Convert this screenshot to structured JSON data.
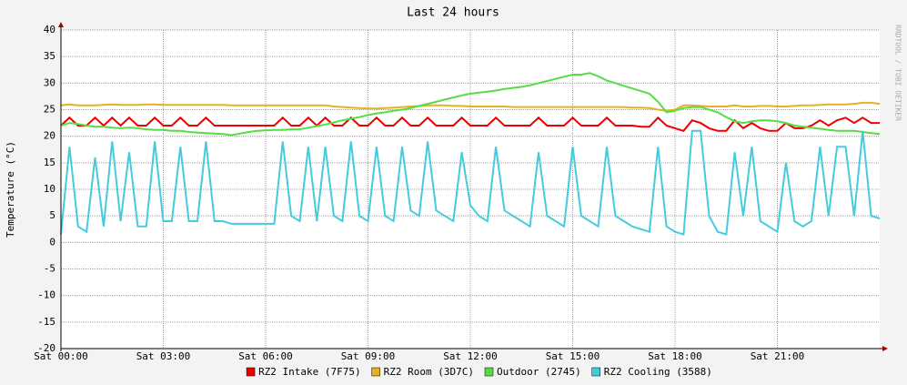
{
  "chart_data": {
    "type": "line",
    "title": "Last 24 hours",
    "ylabel": "Temperature (°C)",
    "side_note": "RRDTOOL / TOBI OETIKER",
    "x": [
      0,
      0.25,
      0.5,
      0.75,
      1,
      1.25,
      1.5,
      1.75,
      2,
      2.25,
      2.5,
      2.75,
      3,
      3.25,
      3.5,
      3.75,
      4,
      4.25,
      4.5,
      4.75,
      5,
      5.25,
      5.5,
      5.75,
      6,
      6.25,
      6.5,
      6.75,
      7,
      7.25,
      7.5,
      7.75,
      8,
      8.25,
      8.5,
      8.75,
      9,
      9.25,
      9.5,
      9.75,
      10,
      10.25,
      10.5,
      10.75,
      11,
      11.25,
      11.5,
      11.75,
      12,
      12.25,
      12.5,
      12.75,
      13,
      13.25,
      13.5,
      13.75,
      14,
      14.25,
      14.5,
      14.75,
      15,
      15.25,
      15.5,
      15.75,
      16,
      16.25,
      16.5,
      16.75,
      17,
      17.25,
      17.5,
      17.75,
      18,
      18.25,
      18.5,
      18.75,
      19,
      19.25,
      19.5,
      19.75,
      20,
      20.25,
      20.5,
      20.75,
      21,
      21.25,
      21.5,
      21.75,
      22,
      22.25,
      22.5,
      22.75,
      23,
      23.25,
      23.5,
      23.75,
      24
    ],
    "xlim": [
      0,
      24
    ],
    "xticks": [
      {
        "value": 0,
        "label": "Sat 00:00"
      },
      {
        "value": 3,
        "label": "Sat 03:00"
      },
      {
        "value": 6,
        "label": "Sat 06:00"
      },
      {
        "value": 9,
        "label": "Sat 09:00"
      },
      {
        "value": 12,
        "label": "Sat 12:00"
      },
      {
        "value": 15,
        "label": "Sat 15:00"
      },
      {
        "value": 18,
        "label": "Sat 18:00"
      },
      {
        "value": 21,
        "label": "Sat 21:00"
      }
    ],
    "ylim": [
      -20,
      40
    ],
    "yticks": [
      -20,
      -15,
      -10,
      -5,
      0,
      5,
      10,
      15,
      20,
      25,
      30,
      35,
      40
    ],
    "grid": true,
    "series": [
      {
        "name": "RZ2 Intake (7F75)",
        "color": "#ee0000",
        "values": [
          22,
          23.5,
          22,
          22,
          23.5,
          22,
          23.5,
          22,
          23.5,
          22,
          22,
          23.5,
          22,
          22,
          23.5,
          22,
          22,
          23.5,
          22,
          22,
          22,
          22,
          22,
          22,
          22,
          22,
          23.5,
          22,
          22,
          23.5,
          22,
          23.5,
          22,
          22,
          23.5,
          22,
          22,
          23.5,
          22,
          22,
          23.5,
          22,
          22,
          23.5,
          22,
          22,
          22,
          23.5,
          22,
          22,
          22,
          23.5,
          22,
          22,
          22,
          22,
          23.5,
          22,
          22,
          22,
          23.5,
          22,
          22,
          22,
          23.5,
          22,
          22,
          22,
          21.8,
          21.8,
          23.5,
          22,
          21.5,
          21,
          23,
          22.5,
          21.5,
          21,
          21,
          23,
          21.5,
          22.5,
          21.5,
          21,
          21,
          22.5,
          21.5,
          21.5,
          22,
          23,
          22,
          23,
          23.5,
          22.5,
          23.5,
          22.5,
          22.5
        ]
      },
      {
        "name": "RZ2 Room (3D7C)",
        "color": "#e8b020",
        "values": [
          25.8,
          26,
          25.8,
          25.8,
          25.8,
          25.9,
          26,
          25.9,
          25.9,
          25.9,
          26,
          26,
          25.9,
          25.9,
          25.9,
          25.9,
          25.9,
          25.9,
          25.9,
          25.9,
          25.8,
          25.8,
          25.8,
          25.8,
          25.8,
          25.8,
          25.8,
          25.8,
          25.8,
          25.8,
          25.8,
          25.8,
          25.6,
          25.5,
          25.4,
          25.3,
          25.2,
          25.2,
          25.3,
          25.4,
          25.5,
          25.6,
          25.7,
          25.8,
          25.8,
          25.8,
          25.7,
          25.7,
          25.6,
          25.6,
          25.6,
          25.6,
          25.6,
          25.5,
          25.5,
          25.5,
          25.5,
          25.5,
          25.5,
          25.5,
          25.5,
          25.5,
          25.5,
          25.5,
          25.5,
          25.5,
          25.5,
          25.4,
          25.4,
          25.3,
          25,
          24.8,
          25,
          25.8,
          25.8,
          25.7,
          25.6,
          25.6,
          25.6,
          25.8,
          25.6,
          25.6,
          25.7,
          25.7,
          25.6,
          25.6,
          25.7,
          25.8,
          25.8,
          25.9,
          26,
          26,
          26,
          26.1,
          26.3,
          26.3,
          26.1
        ]
      },
      {
        "name": "Outdoor (2745)",
        "color": "#55dd44",
        "values": [
          22,
          22.5,
          22.3,
          22,
          21.8,
          21.8,
          21.6,
          21.5,
          21.6,
          21.5,
          21.3,
          21.2,
          21.2,
          21,
          21,
          20.8,
          20.7,
          20.6,
          20.5,
          20.4,
          20.2,
          20.5,
          20.8,
          21,
          21.1,
          21.2,
          21.2,
          21.3,
          21.3,
          21.6,
          21.9,
          22.2,
          22.6,
          23,
          23.3,
          23.6,
          24,
          24.3,
          24.5,
          24.8,
          25,
          25.3,
          25.7,
          26.1,
          26.5,
          26.9,
          27.3,
          27.7,
          28,
          28.2,
          28.4,
          28.6,
          28.9,
          29.1,
          29.3,
          29.6,
          30,
          30.4,
          30.8,
          31.2,
          31.6,
          31.6,
          31.9,
          31.3,
          30.5,
          30,
          29.5,
          29,
          28.5,
          28,
          26.5,
          24.5,
          24.8,
          25.3,
          25.5,
          25.5,
          25,
          24.5,
          23.6,
          22.8,
          22.5,
          22.8,
          23,
          23,
          22.8,
          22.5,
          22,
          21.8,
          21.6,
          21.4,
          21.2,
          21,
          21,
          21,
          20.8,
          20.6,
          20.4
        ]
      },
      {
        "name": "RZ2 Cooling (3588)",
        "color": "#44ccdd",
        "values": [
          1.5,
          18,
          3,
          2,
          16,
          3,
          19,
          4,
          17,
          3,
          3,
          19,
          4,
          4,
          18,
          4,
          4,
          19,
          4,
          4,
          3.5,
          3.5,
          3.5,
          3.5,
          3.5,
          3.5,
          19,
          5,
          4,
          18,
          4,
          18,
          5,
          4,
          19,
          5,
          4,
          18,
          5,
          4,
          18,
          6,
          5,
          19,
          6,
          5,
          4,
          17,
          7,
          5,
          4,
          18,
          6,
          5,
          4,
          3,
          17,
          5,
          4,
          3,
          18,
          5,
          4,
          3,
          18,
          5,
          4,
          3,
          2.5,
          2,
          18,
          3,
          2,
          1.5,
          21,
          21,
          5,
          2,
          1.5,
          17,
          5,
          18,
          4,
          3,
          2,
          15,
          4,
          3,
          4,
          18,
          5,
          18,
          18,
          5,
          21,
          5,
          4.5
        ]
      }
    ]
  }
}
